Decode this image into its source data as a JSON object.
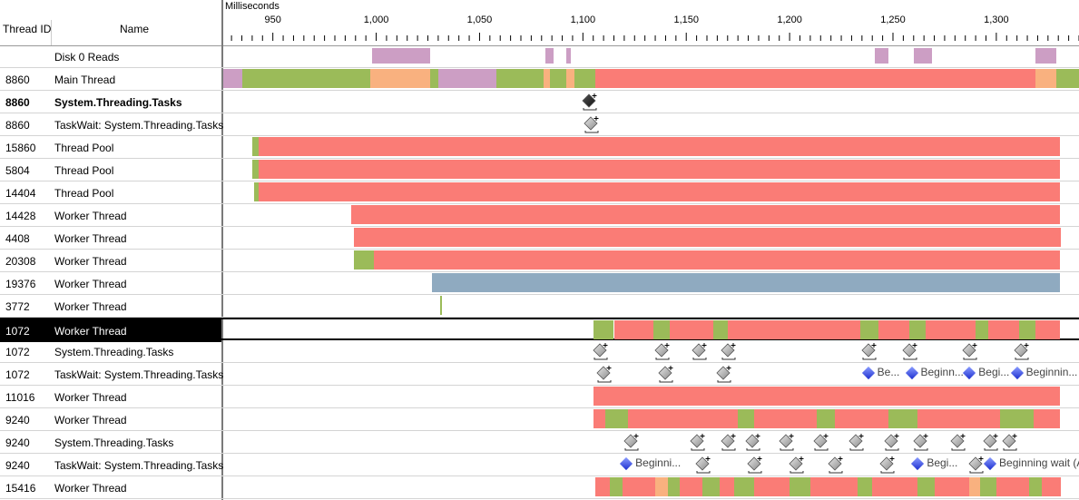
{
  "header": {
    "thread_id_label": "Thread ID",
    "name_label": "Name",
    "axis_title": "Milliseconds",
    "ticks": [
      {
        "label": "950",
        "value": 950
      },
      {
        "label": "1,000",
        "value": 1000
      },
      {
        "label": "1,050",
        "value": 1050
      },
      {
        "label": "1,100",
        "value": 1100
      },
      {
        "label": "1,150",
        "value": 1150
      },
      {
        "label": "1,200",
        "value": 1200
      },
      {
        "label": "1,250",
        "value": 1250
      },
      {
        "label": "1,300",
        "value": 1300
      }
    ],
    "axis_range_ms": [
      926,
      1340
    ]
  },
  "colors": {
    "executing": "#9bbb59",
    "synchronization": "#fa7c76",
    "io": "#cc9ec4",
    "sleep": "#f9b17f",
    "paging": "#8faac0",
    "waiting_black": "#000000"
  },
  "rows": [
    {
      "tid": "",
      "name": "Disk 0 Reads",
      "bold": false,
      "selected": false,
      "segs": [
        [
          998,
          1026,
          "io"
        ],
        [
          1082,
          1086,
          "io"
        ],
        [
          1092,
          1094,
          "io"
        ],
        [
          1241,
          1248,
          "io"
        ],
        [
          1260,
          1269,
          "io"
        ],
        [
          1319,
          1329,
          "io"
        ]
      ],
      "marks": []
    },
    {
      "tid": "8860",
      "name": "Main Thread",
      "bold": false,
      "selected": false,
      "segs": [
        [
          926,
          935,
          "io"
        ],
        [
          935,
          997,
          "executing"
        ],
        [
          997,
          1026,
          "sleep"
        ],
        [
          1026,
          1030,
          "executing"
        ],
        [
          1030,
          1058,
          "io"
        ],
        [
          1058,
          1081,
          "executing"
        ],
        [
          1081,
          1084,
          "sleep"
        ],
        [
          1084,
          1092,
          "executing"
        ],
        [
          1092,
          1096,
          "sleep"
        ],
        [
          1096,
          1106,
          "executing"
        ],
        [
          1106,
          1319,
          "synchronization"
        ],
        [
          1319,
          1329,
          "sleep"
        ],
        [
          1329,
          1340,
          "executing"
        ]
      ],
      "marks": []
    },
    {
      "tid": "8860",
      "name": "System.Threading.Tasks",
      "bold": true,
      "selected": false,
      "segs": [],
      "marks": [
        {
          "ms": 1103,
          "style": "dark"
        }
      ]
    },
    {
      "tid": "8860",
      "name": "TaskWait: System.Threading.Tasks",
      "bold": false,
      "selected": false,
      "segs": [],
      "marks": [
        {
          "ms": 1104,
          "style": "gray"
        }
      ]
    },
    {
      "tid": "15860",
      "name": "Thread Pool",
      "bold": false,
      "selected": false,
      "segs": [
        [
          940,
          943,
          "executing"
        ],
        [
          943,
          1331,
          "synchronization"
        ]
      ],
      "marks": []
    },
    {
      "tid": "5804",
      "name": "Thread Pool",
      "bold": false,
      "selected": false,
      "segs": [
        [
          940,
          943,
          "executing"
        ],
        [
          943,
          1331,
          "synchronization"
        ]
      ],
      "marks": []
    },
    {
      "tid": "14404",
      "name": "Thread Pool",
      "bold": false,
      "selected": false,
      "segs": [
        [
          941,
          943,
          "executing"
        ],
        [
          943,
          1331,
          "synchronization"
        ]
      ],
      "marks": []
    },
    {
      "tid": "14428",
      "name": "Worker Thread",
      "bold": false,
      "selected": false,
      "segs": [
        [
          988,
          1331,
          "synchronization"
        ]
      ],
      "marks": []
    },
    {
      "tid": "4408",
      "name": "Worker Thread",
      "bold": false,
      "selected": false,
      "segs": [
        [
          989,
          1331,
          "synchronization"
        ]
      ],
      "marks": []
    },
    {
      "tid": "20308",
      "name": "Worker Thread",
      "bold": false,
      "selected": false,
      "segs": [
        [
          989,
          999,
          "executing"
        ],
        [
          999,
          1331,
          "synchronization"
        ]
      ],
      "marks": []
    },
    {
      "tid": "19376",
      "name": "Worker Thread",
      "bold": false,
      "selected": false,
      "segs": [
        [
          1027,
          1331,
          "paging"
        ]
      ],
      "marks": []
    },
    {
      "tid": "3772",
      "name": "Worker Thread",
      "bold": false,
      "selected": false,
      "segs": [
        [
          1031,
          1032,
          "executing"
        ]
      ],
      "marks": []
    },
    {
      "tid": "1072",
      "name": "Worker Thread",
      "bold": false,
      "selected": true,
      "segs": [
        [
          1105,
          1115,
          "executing"
        ],
        [
          1115,
          1134,
          "synchronization"
        ],
        [
          1134,
          1142,
          "executing"
        ],
        [
          1142,
          1163,
          "synchronization"
        ],
        [
          1163,
          1170,
          "executing"
        ],
        [
          1170,
          1234,
          "synchronization"
        ],
        [
          1234,
          1243,
          "executing"
        ],
        [
          1243,
          1258,
          "synchronization"
        ],
        [
          1258,
          1266,
          "executing"
        ],
        [
          1266,
          1290,
          "synchronization"
        ],
        [
          1290,
          1296,
          "executing"
        ],
        [
          1296,
          1311,
          "synchronization"
        ],
        [
          1311,
          1319,
          "executing"
        ],
        [
          1319,
          1331,
          "synchronization"
        ]
      ],
      "marks": []
    },
    {
      "tid": "1072",
      "name": "System.Threading.Tasks",
      "bold": false,
      "selected": false,
      "segs": [],
      "marks": [
        {
          "ms": 1108,
          "style": "gray"
        },
        {
          "ms": 1138,
          "style": "gray"
        },
        {
          "ms": 1156,
          "style": "gray"
        },
        {
          "ms": 1170,
          "style": "gray"
        },
        {
          "ms": 1238,
          "style": "gray"
        },
        {
          "ms": 1258,
          "style": "gray"
        },
        {
          "ms": 1287,
          "style": "gray"
        },
        {
          "ms": 1312,
          "style": "gray"
        }
      ]
    },
    {
      "tid": "1072",
      "name": "TaskWait: System.Threading.Tasks",
      "bold": false,
      "selected": false,
      "segs": [],
      "marks": [
        {
          "ms": 1110,
          "style": "gray"
        },
        {
          "ms": 1140,
          "style": "gray"
        },
        {
          "ms": 1168,
          "style": "gray"
        }
      ],
      "events": [
        {
          "ms": 1238,
          "text": "Be..."
        },
        {
          "ms": 1259,
          "text": "Beginn..."
        },
        {
          "ms": 1287,
          "text": "Begi..."
        },
        {
          "ms": 1310,
          "text": "Beginnin..."
        }
      ]
    },
    {
      "tid": "11016",
      "name": "Worker Thread",
      "bold": false,
      "selected": false,
      "segs": [
        [
          1105,
          1331,
          "synchronization"
        ]
      ],
      "marks": []
    },
    {
      "tid": "9240",
      "name": "Worker Thread",
      "bold": false,
      "selected": false,
      "segs": [
        [
          1105,
          1111,
          "synchronization"
        ],
        [
          1111,
          1122,
          "executing"
        ],
        [
          1122,
          1175,
          "synchronization"
        ],
        [
          1175,
          1183,
          "executing"
        ],
        [
          1183,
          1213,
          "synchronization"
        ],
        [
          1213,
          1222,
          "executing"
        ],
        [
          1222,
          1248,
          "synchronization"
        ],
        [
          1248,
          1262,
          "executing"
        ],
        [
          1262,
          1302,
          "synchronization"
        ],
        [
          1302,
          1318,
          "executing"
        ],
        [
          1318,
          1331,
          "synchronization"
        ]
      ],
      "marks": []
    },
    {
      "tid": "9240",
      "name": "System.Threading.Tasks",
      "bold": false,
      "selected": false,
      "segs": [],
      "marks": [
        {
          "ms": 1123,
          "style": "gray"
        },
        {
          "ms": 1155,
          "style": "gray"
        },
        {
          "ms": 1170,
          "style": "gray"
        },
        {
          "ms": 1182,
          "style": "gray"
        },
        {
          "ms": 1198,
          "style": "gray"
        },
        {
          "ms": 1215,
          "style": "gray"
        },
        {
          "ms": 1232,
          "style": "gray"
        },
        {
          "ms": 1249,
          "style": "gray"
        },
        {
          "ms": 1263,
          "style": "gray"
        },
        {
          "ms": 1281,
          "style": "gray"
        },
        {
          "ms": 1297,
          "style": "gray"
        },
        {
          "ms": 1306,
          "style": "gray"
        }
      ]
    },
    {
      "tid": "9240",
      "name": "TaskWait: System.Threading.Tasks",
      "bold": false,
      "selected": false,
      "segs": [],
      "marks": [
        {
          "ms": 1158,
          "style": "gray"
        },
        {
          "ms": 1183,
          "style": "gray"
        },
        {
          "ms": 1203,
          "style": "gray"
        },
        {
          "ms": 1222,
          "style": "gray"
        },
        {
          "ms": 1247,
          "style": "gray"
        },
        {
          "ms": 1290,
          "style": "gray"
        }
      ],
      "events": [
        {
          "ms": 1121,
          "text": "Beginni..."
        },
        {
          "ms": 1262,
          "text": "Begi..."
        },
        {
          "ms": 1297,
          "text": "Beginning wait (A..."
        }
      ]
    },
    {
      "tid": "15416",
      "name": "Worker Thread",
      "bold": false,
      "selected": false,
      "segs": [
        [
          1106,
          1113,
          "synchronization"
        ],
        [
          1113,
          1119,
          "executing"
        ],
        [
          1119,
          1135,
          "synchronization"
        ],
        [
          1135,
          1141,
          "sleep"
        ],
        [
          1141,
          1147,
          "executing"
        ],
        [
          1147,
          1158,
          "synchronization"
        ],
        [
          1158,
          1166,
          "executing"
        ],
        [
          1166,
          1173,
          "synchronization"
        ],
        [
          1173,
          1183,
          "executing"
        ],
        [
          1183,
          1200,
          "synchronization"
        ],
        [
          1200,
          1210,
          "executing"
        ],
        [
          1210,
          1233,
          "synchronization"
        ],
        [
          1233,
          1240,
          "executing"
        ],
        [
          1240,
          1262,
          "synchronization"
        ],
        [
          1262,
          1270,
          "executing"
        ],
        [
          1270,
          1287,
          "synchronization"
        ],
        [
          1287,
          1292,
          "sleep"
        ],
        [
          1292,
          1300,
          "executing"
        ],
        [
          1300,
          1316,
          "synchronization"
        ],
        [
          1316,
          1322,
          "executing"
        ],
        [
          1322,
          1331,
          "synchronization"
        ]
      ],
      "marks": []
    }
  ]
}
